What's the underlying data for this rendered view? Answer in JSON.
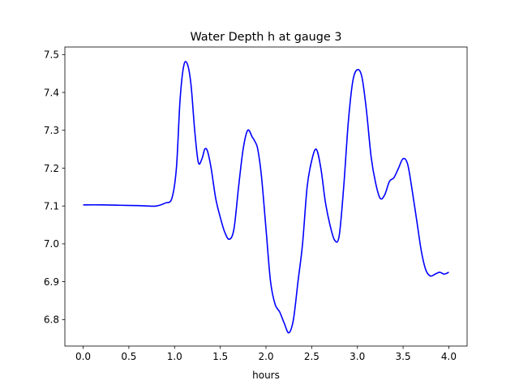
{
  "chart_data": {
    "type": "line",
    "title": "Water Depth h at gauge 3",
    "xlabel": "hours",
    "ylabel": "",
    "xlim": [
      -0.2,
      4.2
    ],
    "ylim": [
      6.73,
      7.52
    ],
    "xticks": [
      0.0,
      0.5,
      1.0,
      1.5,
      2.0,
      2.5,
      3.0,
      3.5,
      4.0
    ],
    "xtick_labels": [
      "0.0",
      "0.5",
      "1.0",
      "1.5",
      "2.0",
      "2.5",
      "3.0",
      "3.5",
      "4.0"
    ],
    "yticks": [
      6.8,
      6.9,
      7.0,
      7.1,
      7.2,
      7.3,
      7.4,
      7.5
    ],
    "ytick_labels": [
      "6.8",
      "6.9",
      "7.0",
      "7.1",
      "7.2",
      "7.3",
      "7.4",
      "7.5"
    ],
    "grid": false,
    "series": [
      {
        "color": "#0000ff",
        "x": [
          0.0,
          0.2,
          0.4,
          0.6,
          0.7,
          0.8,
          0.9,
          0.97,
          1.02,
          1.06,
          1.1,
          1.14,
          1.18,
          1.22,
          1.26,
          1.3,
          1.33,
          1.36,
          1.4,
          1.45,
          1.5,
          1.55,
          1.6,
          1.65,
          1.7,
          1.75,
          1.8,
          1.85,
          1.88,
          1.91,
          1.95,
          2.0,
          2.05,
          2.1,
          2.15,
          2.2,
          2.25,
          2.3,
          2.35,
          2.4,
          2.45,
          2.5,
          2.55,
          2.6,
          2.65,
          2.7,
          2.75,
          2.8,
          2.85,
          2.9,
          2.95,
          3.0,
          3.05,
          3.1,
          3.15,
          3.2,
          3.25,
          3.3,
          3.35,
          3.4,
          3.45,
          3.5,
          3.55,
          3.6,
          3.65,
          3.7,
          3.75,
          3.8,
          3.85,
          3.9,
          3.95,
          4.0
        ],
        "y": [
          7.103,
          7.103,
          7.102,
          7.101,
          7.1,
          7.1,
          7.108,
          7.12,
          7.2,
          7.38,
          7.47,
          7.475,
          7.42,
          7.3,
          7.215,
          7.225,
          7.25,
          7.245,
          7.2,
          7.12,
          7.07,
          7.03,
          7.012,
          7.04,
          7.15,
          7.25,
          7.3,
          7.282,
          7.27,
          7.25,
          7.18,
          7.04,
          6.9,
          6.84,
          6.82,
          6.79,
          6.765,
          6.8,
          6.9,
          7.0,
          7.15,
          7.22,
          7.25,
          7.2,
          7.11,
          7.05,
          7.01,
          7.02,
          7.15,
          7.32,
          7.43,
          7.46,
          7.44,
          7.35,
          7.23,
          7.16,
          7.12,
          7.13,
          7.165,
          7.175,
          7.2,
          7.225,
          7.21,
          7.14,
          7.06,
          6.98,
          6.93,
          6.915,
          6.92,
          6.925,
          6.92,
          6.925
        ]
      }
    ]
  }
}
